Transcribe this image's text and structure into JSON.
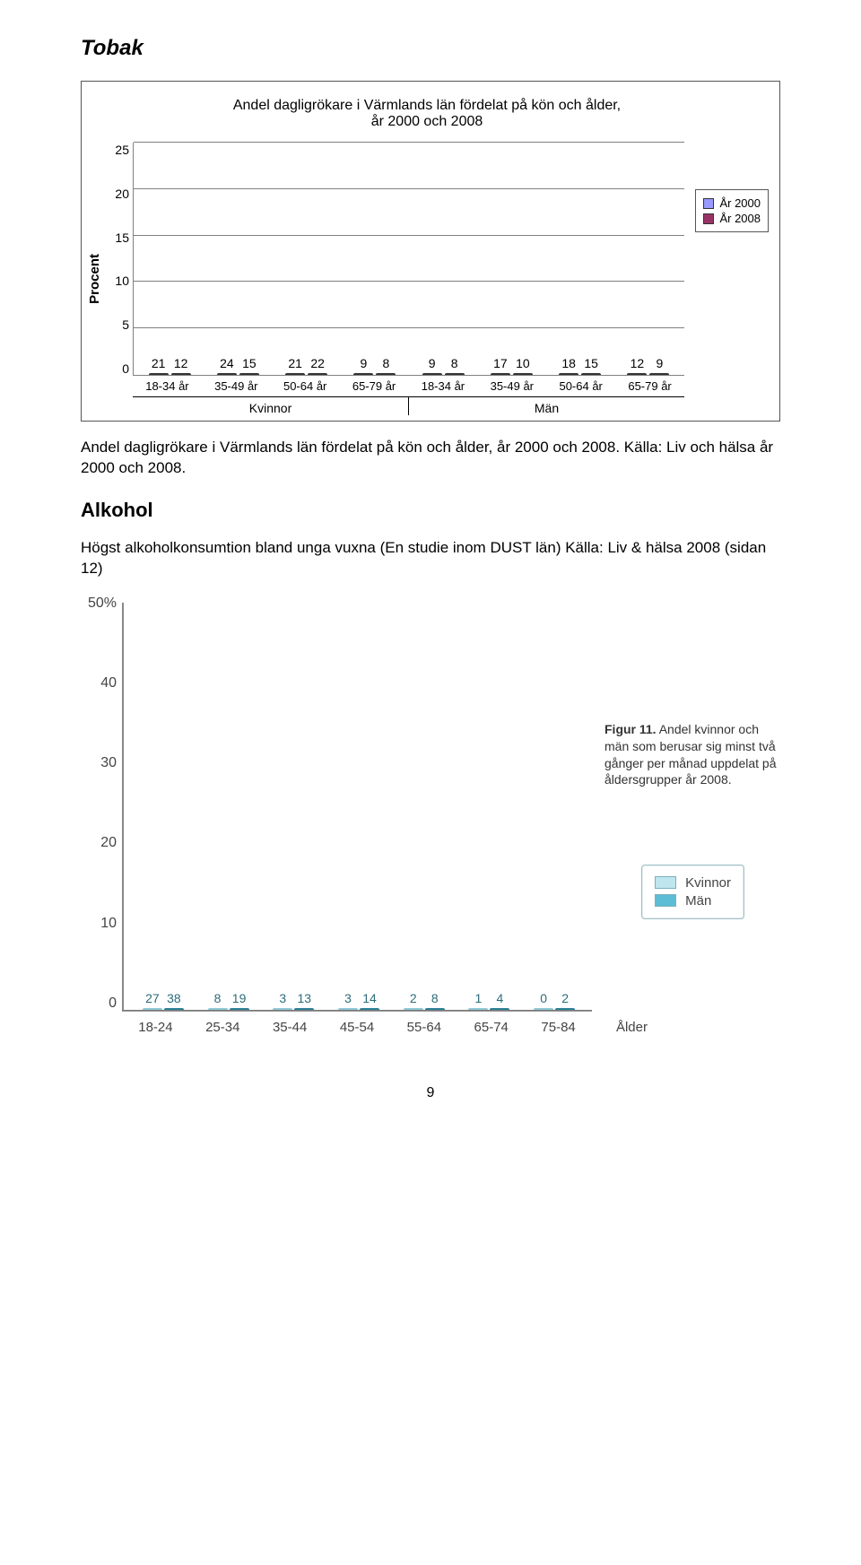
{
  "heading_tobak": "Tobak",
  "chart1": {
    "type": "bar",
    "title": "Andel dagligrökare i Värmlands län fördelat på kön och ålder,\når 2000 och 2008",
    "ylabel": "Procent",
    "ymax": 25,
    "ytick_step": 5,
    "yticks": [
      "0",
      "5",
      "10",
      "15",
      "20",
      "25"
    ],
    "categories": [
      "18-34 år",
      "35-49 år",
      "50-64 år",
      "65-79 år",
      "18-34 år",
      "35-49 år",
      "50-64 år",
      "65-79 år"
    ],
    "gender_groups": [
      "Kvinnor",
      "Män"
    ],
    "series": [
      {
        "name": "År 2000",
        "color": "#9999ff",
        "values": [
          21,
          24,
          21,
          9,
          9,
          17,
          18,
          12
        ]
      },
      {
        "name": "År 2008",
        "color": "#993366",
        "values": [
          12,
          15,
          22,
          8,
          8,
          10,
          15,
          9
        ]
      }
    ],
    "grid_color": "#808080",
    "bar_border": "#333333",
    "background": "#ffffff",
    "label_fontsize": 14
  },
  "para1": "Andel dagligrökare i Värmlands län fördelat på kön och ålder, år 2000 och 2008. Källa: Liv och hälsa år 2000 och 2008.",
  "heading_alkohol": "Alkohol",
  "para2": "Högst alkoholkonsumtion bland unga vuxna (En studie inom DUST län) Källa: Liv & hälsa 2008 (sidan 12)",
  "chart2": {
    "type": "bar",
    "ylabel_suffix": "%",
    "ymax": 50,
    "ytick_step": 10,
    "yticks": [
      "0",
      "10",
      "20",
      "30",
      "40",
      "50%"
    ],
    "categories": [
      "18-24",
      "25-34",
      "35-44",
      "45-54",
      "55-64",
      "65-74",
      "75-84"
    ],
    "xlabel": "Ålder",
    "series": [
      {
        "name": "Kvinnor",
        "color_light": true,
        "values": [
          27,
          8,
          3,
          3,
          2,
          1,
          0
        ]
      },
      {
        "name": "Män",
        "color_light": false,
        "values": [
          38,
          19,
          13,
          14,
          8,
          4,
          2
        ]
      }
    ],
    "caption_bold": "Figur 11.",
    "caption_rest": " Andel kvinnor och män som berusar sig minst två gånger per månad uppdelat på åldersgrupper år 2008.",
    "legend_labels": [
      "Kvinnor",
      "Män"
    ],
    "light_fill": "#bfe6ef",
    "dark_fill": "#5cbdd5"
  },
  "pageno": "9"
}
